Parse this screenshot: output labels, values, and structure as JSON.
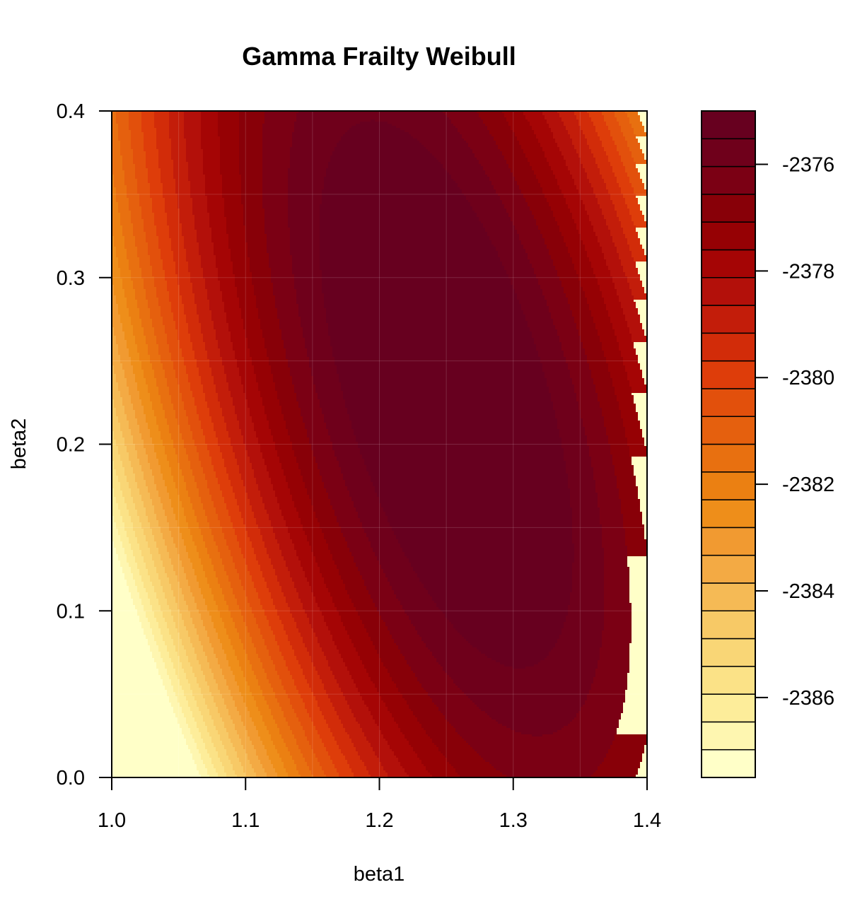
{
  "chart_data": {
    "type": "heatmap",
    "subtype": "filled-contour",
    "title": "Gamma Frailty Weibull",
    "xlabel": "beta1",
    "ylabel": "beta2",
    "xlim": [
      1.0,
      1.4
    ],
    "ylim": [
      0.0,
      0.4
    ],
    "x_ticks": [
      "1.0",
      "1.1",
      "1.2",
      "1.3",
      "1.4"
    ],
    "y_ticks": [
      "0.0",
      "0.1",
      "0.2",
      "0.3",
      "0.4"
    ],
    "grid": true,
    "surface": {
      "description": "log-likelihood surface",
      "peak": {
        "beta1": 1.25,
        "beta2": 0.23,
        "value": -2375.1
      },
      "peak_value": -2375.1,
      "min_value": -2387.5
    },
    "legend": {
      "position": "right",
      "levels_min": -2387.5,
      "levels_max": -2375.0,
      "level_step": 0.5,
      "tick_values": [
        -2386,
        -2384,
        -2382,
        -2380,
        -2378,
        -2376
      ],
      "tick_labels": [
        "-2386",
        "-2384",
        "-2382",
        "-2380",
        "-2378",
        "-2376"
      ],
      "color_low": "#FFFFC8",
      "color_high": "#67001F"
    },
    "colors": [
      "#FFFFC8",
      "#FEF6B0",
      "#FDED9A",
      "#FBE287",
      "#F9D676",
      "#F7C966",
      "#F5BA55",
      "#F3AA44",
      "#F19A31",
      "#EE8E1A",
      "#EB8012",
      "#E87010",
      "#E5600E",
      "#E2500C",
      "#DE3D0A",
      "#D22C09",
      "#C31D0A",
      "#B3100A",
      "#A50505",
      "#960104",
      "#880008",
      "#7B0014",
      "#6F001B",
      "#67001F"
    ]
  }
}
